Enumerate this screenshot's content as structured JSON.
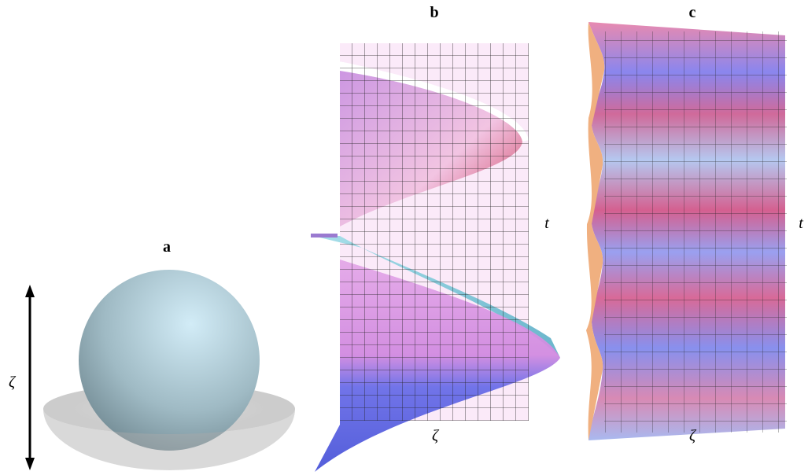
{
  "panels": [
    {
      "label": "a",
      "axis_label": "ζ"
    },
    {
      "label": "b",
      "x_label": "ζ",
      "y_label": "t"
    },
    {
      "label": "c",
      "x_label": "ζ",
      "y_label": "t"
    }
  ]
}
